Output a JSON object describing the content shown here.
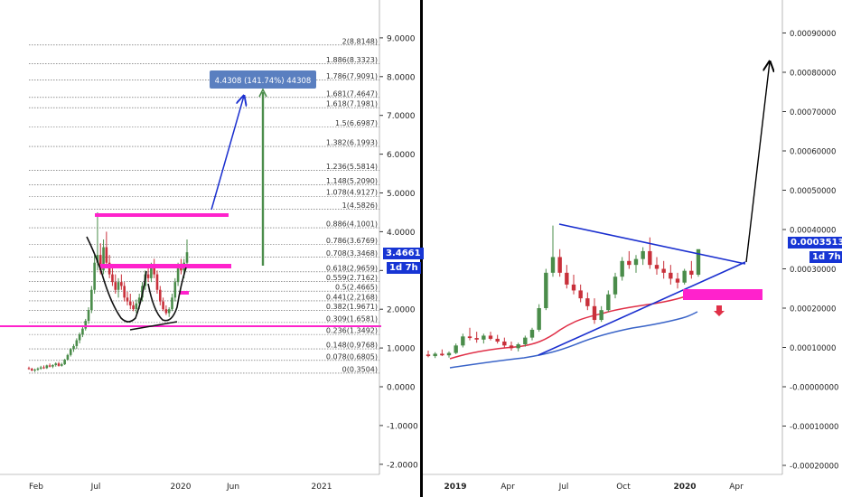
{
  "colors": {
    "up": "#4a8c4a",
    "down": "#c8303a",
    "fib": "#555555",
    "magenta": "#ff22cc",
    "trend": "#1a2fcf",
    "ema_red": "#e03048",
    "ema_blue": "#3a64c8",
    "label_bg": "#5a7fc0",
    "price_tag": "#1735d4",
    "divider": "#000000"
  },
  "chart_data": [
    {
      "type": "candlestick",
      "instrument_note": "left panel",
      "x_axis_labels": [
        "Feb",
        "Jul",
        "2020",
        "Jun",
        "2021"
      ],
      "y_axis_ticks": [
        "9.0000",
        "8.0000",
        "7.0000",
        "6.0000",
        "5.0000",
        "4.0000",
        "3.0000",
        "2.0000",
        "1.0000",
        "0.0000",
        "-1.0000",
        "-2.0000"
      ],
      "ylim": [
        -2.2,
        9.8
      ],
      "grid": false,
      "fibonacci_levels": [
        {
          "ratio": "0",
          "price": 0.3504,
          "label": "0(0.3504)"
        },
        {
          "ratio": "0.078",
          "price": 0.6805,
          "label": "0.078(0.6805)"
        },
        {
          "ratio": "0.148",
          "price": 0.9768,
          "label": "0.148(0.9768)"
        },
        {
          "ratio": "0.236",
          "price": 1.3492,
          "label": "0.236(1.3492)"
        },
        {
          "ratio": "0.309",
          "price": 1.6581,
          "label": "0.309(1.6581)"
        },
        {
          "ratio": "0.382",
          "price": 1.9671,
          "label": "0.382(1.9671)"
        },
        {
          "ratio": "0.441",
          "price": 2.2168,
          "label": "0.441(2.2168)"
        },
        {
          "ratio": "0.5",
          "price": 2.4665,
          "label": "0.5(2.4665)"
        },
        {
          "ratio": "0.559",
          "price": 2.7162,
          "label": "0.559(2.7162)"
        },
        {
          "ratio": "0.618",
          "price": 2.9659,
          "label": "0.618(2.9659)"
        },
        {
          "ratio": "0.708",
          "price": 3.3468,
          "label": "0.708(3.3468)"
        },
        {
          "ratio": "0.786",
          "price": 3.6769,
          "label": "0.786(3.6769)"
        },
        {
          "ratio": "0.886",
          "price": 4.1001,
          "label": "0.886(4.1001)"
        },
        {
          "ratio": "1",
          "price": 4.5826,
          "label": "1(4.5826)"
        },
        {
          "ratio": "1.078",
          "price": 4.9127,
          "label": "1.078(4.9127)"
        },
        {
          "ratio": "1.148",
          "price": 5.209,
          "label": "1.148(5.2090)"
        },
        {
          "ratio": "1.236",
          "price": 5.5814,
          "label": "1.236(5.5814)"
        },
        {
          "ratio": "1.382",
          "price": 6.1993,
          "label": "1.382(6.1993)"
        },
        {
          "ratio": "1.5",
          "price": 6.6987,
          "label": "1.5(6.6987)"
        },
        {
          "ratio": "1.618",
          "price": 7.1981,
          "label": "1.618(7.1981)"
        },
        {
          "ratio": "1.681",
          "price": 7.4647,
          "label": "1.681(7.4647)"
        },
        {
          "ratio": "1.786",
          "price": 7.9091,
          "label": "1.786(7.9091)"
        },
        {
          "ratio": "1.886",
          "price": 8.3323,
          "label": "1.886(8.3323)"
        },
        {
          "ratio": "2",
          "price": 8.8148,
          "label": "2(8.8148)"
        }
      ],
      "candles": [
        [
          0.48,
          0.52,
          0.44,
          0.46
        ],
        [
          0.46,
          0.49,
          0.4,
          0.42
        ],
        [
          0.42,
          0.47,
          0.38,
          0.44
        ],
        [
          0.44,
          0.5,
          0.41,
          0.47
        ],
        [
          0.47,
          0.54,
          0.44,
          0.5
        ],
        [
          0.5,
          0.55,
          0.46,
          0.48
        ],
        [
          0.48,
          0.57,
          0.46,
          0.55
        ],
        [
          0.55,
          0.6,
          0.5,
          0.52
        ],
        [
          0.52,
          0.58,
          0.48,
          0.56
        ],
        [
          0.56,
          0.63,
          0.52,
          0.6
        ],
        [
          0.6,
          0.64,
          0.52,
          0.54
        ],
        [
          0.54,
          0.62,
          0.52,
          0.58
        ],
        [
          0.58,
          0.72,
          0.56,
          0.7
        ],
        [
          0.7,
          0.85,
          0.68,
          0.82
        ],
        [
          0.82,
          1.0,
          0.78,
          0.97
        ],
        [
          0.97,
          1.1,
          0.9,
          1.05
        ],
        [
          1.05,
          1.25,
          0.98,
          1.2
        ],
        [
          1.2,
          1.4,
          1.12,
          1.35
        ],
        [
          1.35,
          1.55,
          1.28,
          1.5
        ],
        [
          1.5,
          1.75,
          1.45,
          1.7
        ],
        [
          1.7,
          2.05,
          1.62,
          1.98
        ],
        [
          1.98,
          2.6,
          1.9,
          2.5
        ],
        [
          2.5,
          3.4,
          2.4,
          3.2
        ],
        [
          3.2,
          4.5,
          3.0,
          3.4
        ],
        [
          3.4,
          3.7,
          2.9,
          3.0
        ],
        [
          3.0,
          3.8,
          2.9,
          3.6
        ],
        [
          3.6,
          4.0,
          3.1,
          3.2
        ],
        [
          3.2,
          3.4,
          2.8,
          2.9
        ],
        [
          2.9,
          3.1,
          2.6,
          2.7
        ],
        [
          2.7,
          2.9,
          2.4,
          2.5
        ],
        [
          2.5,
          2.8,
          2.3,
          2.7
        ],
        [
          2.7,
          2.9,
          2.5,
          2.6
        ],
        [
          2.6,
          2.7,
          2.2,
          2.3
        ],
        [
          2.3,
          2.45,
          2.1,
          2.2
        ],
        [
          2.2,
          2.4,
          2.0,
          2.1
        ],
        [
          2.1,
          2.2,
          1.95,
          2.0
        ],
        [
          2.0,
          2.25,
          1.9,
          2.15
        ],
        [
          2.15,
          2.4,
          2.0,
          2.3
        ],
        [
          2.3,
          2.7,
          2.2,
          2.6
        ],
        [
          2.6,
          3.0,
          2.5,
          2.9
        ],
        [
          2.9,
          3.1,
          2.7,
          2.8
        ],
        [
          2.8,
          3.2,
          2.7,
          3.1
        ],
        [
          3.1,
          3.3,
          2.8,
          2.9
        ],
        [
          2.9,
          3.0,
          2.4,
          2.5
        ],
        [
          2.5,
          2.6,
          2.1,
          2.2
        ],
        [
          2.2,
          2.3,
          1.95,
          2.0
        ],
        [
          2.0,
          2.1,
          1.85,
          1.9
        ],
        [
          1.9,
          2.05,
          1.8,
          2.0
        ],
        [
          2.0,
          2.4,
          1.95,
          2.3
        ],
        [
          2.3,
          2.8,
          2.2,
          2.7
        ],
        [
          2.7,
          3.2,
          2.6,
          3.1
        ],
        [
          3.1,
          3.3,
          2.9,
          3.0
        ],
        [
          3.0,
          3.3,
          2.8,
          3.2
        ],
        [
          3.2,
          3.8,
          3.1,
          3.47
        ]
      ],
      "annotations": {
        "measure_label": "4.4308 (141.74%) 44308",
        "price_tag": "3.4661",
        "countdown_tag": "1d 7h"
      }
    },
    {
      "type": "candlestick",
      "instrument_note": "right panel",
      "x_axis_labels": [
        "2019",
        "Apr",
        "Jul",
        "Oct",
        "2020",
        "Apr"
      ],
      "y_axis_ticks": [
        "0.00090000",
        "0.00080000",
        "0.00070000",
        "0.00060000",
        "0.00050000",
        "0.00040000",
        "0.00030000",
        "0.00020000",
        "0.00010000",
        "-0.00000000",
        "-0.00010000",
        "-0.00020000"
      ],
      "ylim": [
        -0.00022,
        0.00098
      ],
      "grid": false,
      "candles": [
        [
          8.2e-05,
          9.2e-05,
          7.5e-05,
          7.8e-05
        ],
        [
          7.8e-05,
          8.8e-05,
          7.3e-05,
          8.4e-05
        ],
        [
          8.4e-05,
          9.5e-05,
          7.8e-05,
          8e-05
        ],
        [
          8e-05,
          9e-05,
          7.4e-05,
          8.6e-05
        ],
        [
          8.6e-05,
          0.00011,
          8.3e-05,
          0.000105
        ],
        [
          0.000105,
          0.000135,
          0.0001,
          0.000128
        ],
        [
          0.000128,
          0.00015,
          0.000118,
          0.000124
        ],
        [
          0.000124,
          0.00014,
          0.000112,
          0.00012
        ],
        [
          0.00012,
          0.000135,
          0.00011,
          0.00013
        ],
        [
          0.00013,
          0.00014,
          0.000118,
          0.000122
        ],
        [
          0.000122,
          0.000132,
          0.00011,
          0.000115
        ],
        [
          0.000115,
          0.000125,
          0.0001,
          0.000105
        ],
        [
          0.000105,
          0.000115,
          9.2e-05,
          9.8e-05
        ],
        [
          9.8e-05,
          0.000112,
          9e-05,
          0.000108
        ],
        [
          0.000108,
          0.00013,
          0.000102,
          0.000125
        ],
        [
          0.000125,
          0.00015,
          0.000118,
          0.000145
        ],
        [
          0.000145,
          0.00021,
          0.00014,
          0.0002
        ],
        [
          0.0002,
          0.0003,
          0.000195,
          0.00029
        ],
        [
          0.00029,
          0.00041,
          0.00028,
          0.00033
        ],
        [
          0.00033,
          0.00035,
          0.00028,
          0.00029
        ],
        [
          0.00029,
          0.00031,
          0.00025,
          0.00026
        ],
        [
          0.00026,
          0.000285,
          0.000235,
          0.000245
        ],
        [
          0.000245,
          0.00026,
          0.000215,
          0.000225
        ],
        [
          0.000225,
          0.00024,
          0.000195,
          0.000205
        ],
        [
          0.000205,
          0.000225,
          0.00016,
          0.00017
        ],
        [
          0.00017,
          0.000205,
          0.000165,
          0.000195
        ],
        [
          0.000195,
          0.000245,
          0.00019,
          0.000235
        ],
        [
          0.000235,
          0.00029,
          0.000225,
          0.00028
        ],
        [
          0.00028,
          0.00033,
          0.00027,
          0.00032
        ],
        [
          0.00032,
          0.000345,
          0.0003,
          0.00031
        ],
        [
          0.00031,
          0.000335,
          0.00029,
          0.000325
        ],
        [
          0.000325,
          0.000355,
          0.00031,
          0.000345
        ],
        [
          0.000345,
          0.00038,
          0.0003,
          0.00031
        ],
        [
          0.00031,
          0.00033,
          0.000285,
          0.0003
        ],
        [
          0.0003,
          0.00032,
          0.000275,
          0.00029
        ],
        [
          0.00029,
          0.00031,
          0.00026,
          0.000275
        ],
        [
          0.000275,
          0.00029,
          0.00025,
          0.000265
        ],
        [
          0.000265,
          0.0003,
          0.00026,
          0.000295
        ],
        [
          0.000295,
          0.00032,
          0.000275,
          0.000285
        ],
        [
          0.000285,
          0.00034,
          0.00028,
          0.00035
        ]
      ],
      "annotations": {
        "price_tag": "0.00035139",
        "countdown_tag": "1d 7h"
      }
    }
  ]
}
